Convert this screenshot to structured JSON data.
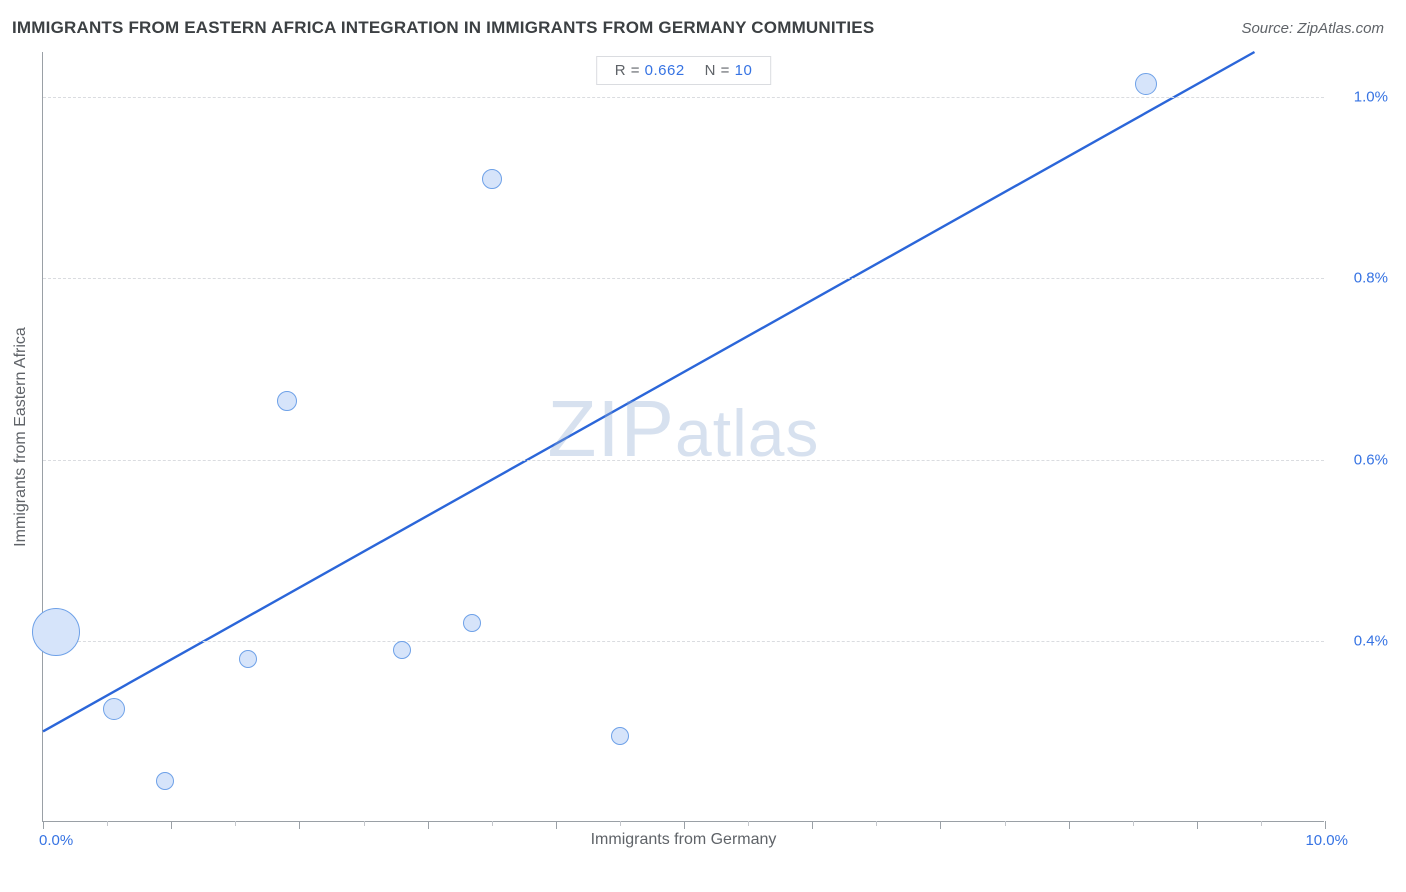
{
  "title_text": "IMMIGRANTS FROM EASTERN AFRICA INTEGRATION IN IMMIGRANTS FROM GERMANY COMMUNITIES",
  "title_color": "#3c4043",
  "source_text": "Source: ZipAtlas.com",
  "source_color": "#5f6368",
  "chart": {
    "type": "scatter",
    "x_axis": {
      "title": "Immigrants from Germany",
      "min": 0.0,
      "max": 10.0,
      "min_label": "0.0%",
      "max_label": "10.0%",
      "title_color": "#5f6368",
      "end_label_color": "#3673e3",
      "tick_major_step": 1.0,
      "tick_minor_step": 0.5
    },
    "y_axis": {
      "title": "Immigrants from Eastern Africa",
      "min": 0.2,
      "max": 1.05,
      "title_color": "#5f6368",
      "tick_label_color": "#3673e3",
      "grid_values": [
        0.4,
        0.6,
        0.8,
        1.0
      ],
      "grid_labels": [
        "0.4%",
        "0.6%",
        "0.8%",
        "1.0%"
      ],
      "grid_color": "#dadce0"
    },
    "stats": {
      "r_label": "R =",
      "r_value": "0.662",
      "n_label": "N =",
      "n_value": "10",
      "label_color": "#5f6368",
      "value_color": "#3673e3"
    },
    "points": [
      {
        "x": 0.1,
        "y": 0.41,
        "r": 24
      },
      {
        "x": 0.55,
        "y": 0.325,
        "r": 11
      },
      {
        "x": 0.95,
        "y": 0.245,
        "r": 9
      },
      {
        "x": 1.6,
        "y": 0.38,
        "r": 9
      },
      {
        "x": 1.9,
        "y": 0.665,
        "r": 10
      },
      {
        "x": 2.8,
        "y": 0.39,
        "r": 9
      },
      {
        "x": 3.35,
        "y": 0.42,
        "r": 9
      },
      {
        "x": 3.5,
        "y": 0.91,
        "r": 10
      },
      {
        "x": 4.5,
        "y": 0.295,
        "r": 9
      },
      {
        "x": 8.6,
        "y": 1.015,
        "r": 11
      }
    ],
    "point_fill": "#d6e4fa",
    "point_stroke": "#6ea1e8",
    "trend_line": {
      "x1": 0.0,
      "y1": 0.3,
      "x2": 9.45,
      "y2": 1.05,
      "color": "#2b66d9"
    },
    "watermark": {
      "text_z": "Z",
      "text_i": "I",
      "text_p": "P",
      "text_rest": "atlas",
      "color": "rgba(140,170,210,0.35)"
    }
  }
}
